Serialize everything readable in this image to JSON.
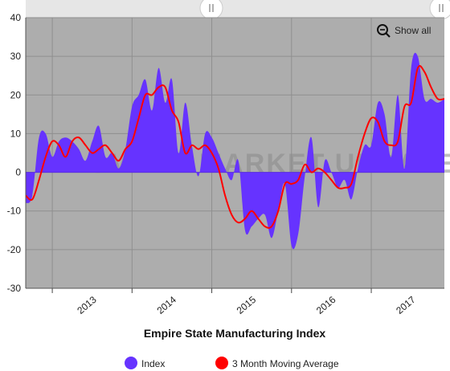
{
  "chart_data": {
    "type": "area",
    "title": "Empire State Manufacturing Index",
    "xlabel": "",
    "ylabel": "",
    "ylim": [
      -30,
      40
    ],
    "yticks": [
      -30,
      -20,
      -10,
      0,
      10,
      20,
      30,
      40
    ],
    "xticks": [
      "2013",
      "2014",
      "2015",
      "2016",
      "2017"
    ],
    "x": [
      "2012-09",
      "2012-10",
      "2012-11",
      "2012-12",
      "2013-01",
      "2013-02",
      "2013-03",
      "2013-04",
      "2013-05",
      "2013-06",
      "2013-07",
      "2013-08",
      "2013-09",
      "2013-10",
      "2013-11",
      "2013-12",
      "2014-01",
      "2014-02",
      "2014-03",
      "2014-04",
      "2014-05",
      "2014-06",
      "2014-07",
      "2014-08",
      "2014-09",
      "2014-10",
      "2014-11",
      "2014-12",
      "2015-01",
      "2015-02",
      "2015-03",
      "2015-04",
      "2015-05",
      "2015-06",
      "2015-07",
      "2015-08",
      "2015-09",
      "2015-10",
      "2015-11",
      "2015-12",
      "2016-01",
      "2016-02",
      "2016-03",
      "2016-04",
      "2016-05",
      "2016-06",
      "2016-07",
      "2016-08",
      "2016-09",
      "2016-10",
      "2016-11",
      "2016-12",
      "2017-01",
      "2017-02",
      "2017-03",
      "2017-04",
      "2017-05",
      "2017-06",
      "2017-07",
      "2017-08",
      "2017-09",
      "2017-10",
      "2017-11",
      "2017-12"
    ],
    "series": [
      {
        "name": "Index",
        "color": "#6633ff",
        "values": [
          -8,
          -6,
          9,
          10,
          4,
          8,
          9,
          8,
          6,
          3,
          8,
          12,
          4,
          5,
          1,
          6,
          17,
          20,
          24,
          16,
          27,
          18,
          24,
          5,
          18,
          7,
          -1,
          10,
          9,
          5,
          1,
          -2,
          3,
          -15,
          -14,
          -12,
          -11,
          -17,
          -10,
          -3,
          -19,
          -16,
          -1,
          9,
          -9,
          3,
          0,
          -4,
          -2,
          -7,
          1,
          7,
          7,
          18,
          15,
          4,
          20,
          1,
          27,
          30,
          19,
          19,
          18,
          19
        ]
      },
      {
        "name": "3 Month Moving Average",
        "color": "#ff0000",
        "values": [
          -6,
          -7,
          -2,
          4,
          8,
          7,
          4,
          8,
          9,
          7,
          5,
          6,
          7,
          5,
          3,
          6,
          8,
          14,
          20,
          20,
          22,
          22,
          16,
          13,
          5,
          7,
          6,
          7,
          5,
          1,
          -6,
          -11,
          -13,
          -12,
          -10,
          -12,
          -14,
          -14,
          -10,
          -3,
          -3,
          -2,
          2,
          0,
          1,
          0,
          -2,
          -4,
          -4,
          -3,
          4,
          10,
          14,
          13,
          8,
          7,
          8,
          17,
          18,
          27,
          26,
          22,
          19,
          19
        ]
      }
    ],
    "grid": true,
    "legend": "bottom",
    "background": "#adadad"
  },
  "toolbar": {
    "show_all_label": "Show all"
  },
  "watermark": "SMALL MARKET UPDATE"
}
